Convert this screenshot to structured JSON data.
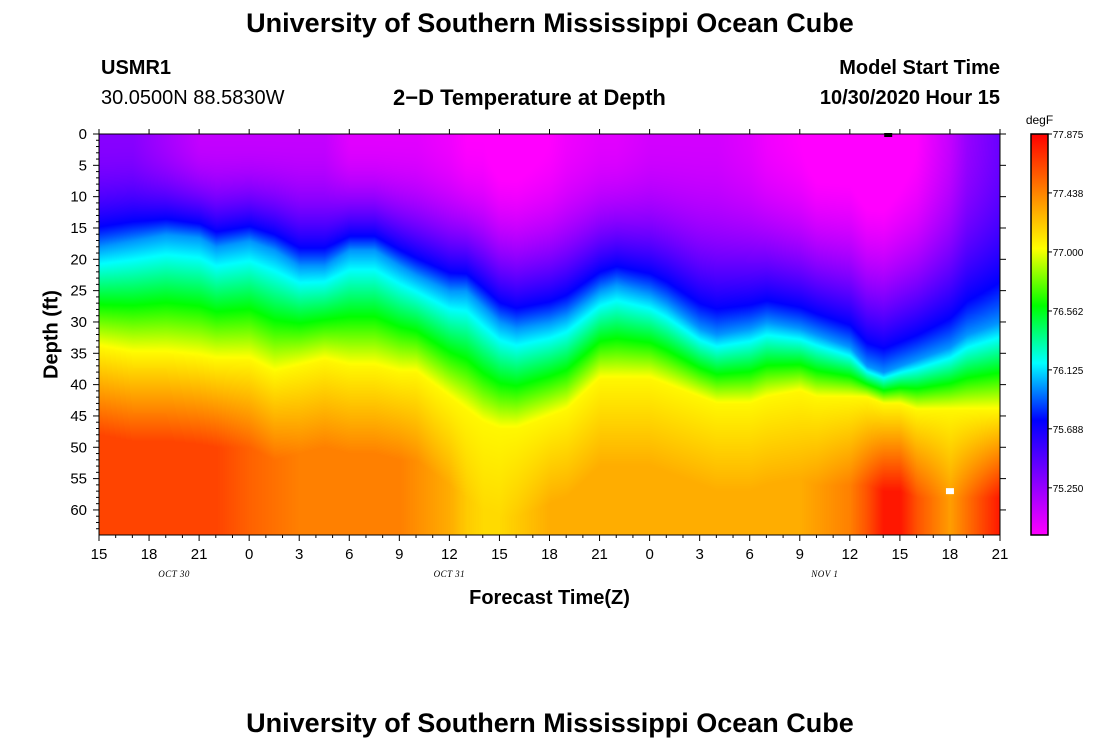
{
  "page": {
    "title": "University of Southern Mississippi Ocean Cube",
    "footer_title": "University of Southern Mississippi Ocean Cube"
  },
  "header": {
    "station_id": "USMR1",
    "coordinates": "30.0500N 88.5830W",
    "plot_title": "2−D Temperature at Depth",
    "model_start_label": "Model Start Time",
    "model_start_value": "10/30/2020 Hour 15"
  },
  "chart_data": {
    "type": "heatmap",
    "title": "2−D Temperature at Depth",
    "xlabel": "Forecast Time(Z)",
    "ylabel": "Depth (ft)",
    "x_tick_labels": [
      "15",
      "18",
      "21",
      "0",
      "3",
      "6",
      "9",
      "12",
      "15",
      "18",
      "21",
      "0",
      "3",
      "6",
      "9",
      "12",
      "15",
      "18",
      "21"
    ],
    "x_hours_from_start": [
      0,
      3,
      6,
      9,
      12,
      15,
      18,
      21,
      24,
      27,
      30,
      33,
      36,
      39,
      42,
      45,
      48,
      51,
      54
    ],
    "x_date_labels": [
      {
        "text": "OCT  30",
        "hour": 4.5
      },
      {
        "text": "OCT  31",
        "hour": 21
      },
      {
        "text": "NOV  1",
        "hour": 43.5
      }
    ],
    "y_ticks": [
      0,
      5,
      10,
      15,
      20,
      25,
      30,
      35,
      40,
      45,
      50,
      55,
      60
    ],
    "ylim": [
      0,
      64
    ],
    "y_inverted": true,
    "colorbar": {
      "unit": "degF",
      "tick_values": [
        "77.875",
        "77.438",
        "77.000",
        "76.562",
        "76.125",
        "75.688",
        "75.250"
      ],
      "min": 74.9,
      "max": 77.875,
      "colors": [
        "#ff00ff",
        "#8000ff",
        "#0000ff",
        "#00ffff",
        "#00ff00",
        "#ffff00",
        "#ff8000",
        "#ff0000"
      ]
    },
    "model": {
      "x_hours": [
        0,
        2,
        4,
        6,
        7,
        9,
        10.5,
        12,
        13.5,
        15,
        16.5,
        18,
        19,
        21,
        22,
        23,
        24,
        25,
        27,
        28,
        30,
        31,
        33,
        34,
        36,
        37,
        39,
        40,
        42,
        43,
        45,
        46,
        47,
        48,
        49,
        51,
        52,
        54
      ],
      "surface_temp": [
        75.3,
        75.3,
        75.2,
        75.1,
        75.1,
        75.1,
        75.1,
        75.1,
        75.1,
        75.0,
        75.0,
        75.0,
        75.0,
        74.95,
        74.9,
        74.9,
        74.85,
        74.85,
        74.9,
        74.95,
        75.0,
        75.0,
        75.05,
        75.05,
        75.05,
        75.05,
        75.0,
        74.95,
        74.9,
        74.85,
        74.85,
        74.8,
        74.8,
        74.85,
        74.9,
        75.1,
        75.25,
        75.4
      ],
      "thermocline_depth": [
        18,
        17,
        16,
        16.5,
        18,
        17,
        18.5,
        21,
        21,
        18.5,
        18.5,
        21,
        22.5,
        25,
        25,
        27.5,
        30,
        31,
        30,
        29,
        25,
        24,
        25.5,
        27,
        31,
        32,
        31,
        30,
        31,
        32,
        34,
        37,
        38,
        37,
        36,
        34,
        32,
        30
      ],
      "lower_depth": [
        34,
        35,
        35,
        35.5,
        36,
        36,
        38,
        37,
        36,
        37,
        37,
        38,
        38,
        42,
        44,
        46,
        47,
        47,
        45,
        44,
        39,
        39,
        39,
        40,
        42,
        43,
        43,
        42,
        41,
        42,
        42,
        42,
        43,
        43,
        44,
        44,
        44,
        44
      ],
      "bottom_temp": [
        77.65,
        77.65,
        77.65,
        77.65,
        77.65,
        77.55,
        77.5,
        77.45,
        77.45,
        77.45,
        77.45,
        77.45,
        77.4,
        77.3,
        77.2,
        77.15,
        77.15,
        77.2,
        77.3,
        77.3,
        77.3,
        77.3,
        77.3,
        77.3,
        77.3,
        77.3,
        77.3,
        77.3,
        77.3,
        77.35,
        77.45,
        77.6,
        77.8,
        77.8,
        77.6,
        77.35,
        77.5,
        77.8
      ]
    },
    "markers": [
      {
        "label": "surface marker",
        "hour": 47.3,
        "depth": 0,
        "color": "#000000"
      },
      {
        "label": "sample marker",
        "hour": 51,
        "depth": 57,
        "color": "#ffffff"
      }
    ]
  }
}
